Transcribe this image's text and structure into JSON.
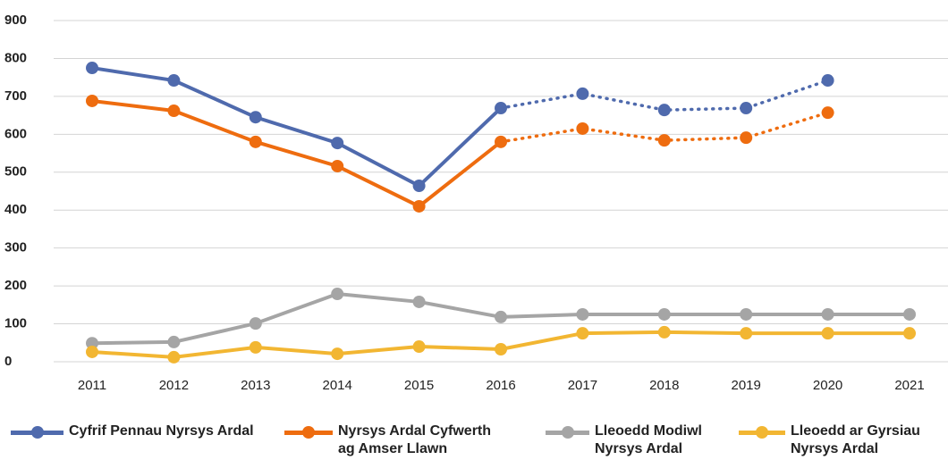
{
  "chart_data": {
    "type": "line",
    "categories": [
      "2011",
      "2012",
      "2013",
      "2014",
      "2015",
      "2016",
      "2017",
      "2018",
      "2019",
      "2020",
      "2021"
    ],
    "series": [
      {
        "name": "Cyfrif Pennau Nyrsys Ardal",
        "color": "#4f6aad",
        "dash_from": 5,
        "values": [
          775,
          742,
          645,
          577,
          464,
          669,
          707,
          664,
          669,
          742,
          null
        ]
      },
      {
        "name": "Nyrsys Ardal Cyfwerth ag Amser Llawn",
        "color": "#ee6c0f",
        "dash_from": 5,
        "values": [
          688,
          662,
          580,
          516,
          410,
          580,
          615,
          584,
          591,
          657,
          null
        ]
      },
      {
        "name": "Lleoedd Modiwl Nyrsys Ardal",
        "color": "#a5a5a5",
        "values": [
          49,
          52,
          101,
          179,
          158,
          118,
          125,
          125,
          125,
          125,
          125
        ]
      },
      {
        "name": "Lleoedd ar Gyrsiau Nyrsys Ardal",
        "color": "#f2b632",
        "values": [
          26,
          12,
          38,
          21,
          40,
          33,
          75,
          78,
          75,
          75,
          75
        ]
      }
    ],
    "ylim": [
      0,
      900
    ],
    "yticks": [
      0,
      100,
      200,
      300,
      400,
      500,
      600,
      700,
      800,
      900
    ],
    "grid": true,
    "legend": "bottom"
  }
}
